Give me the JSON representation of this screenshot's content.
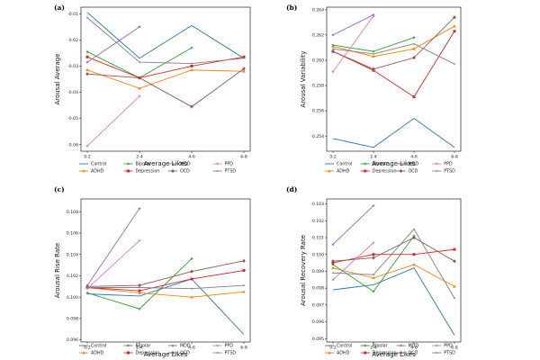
{
  "series_styles": [
    {
      "name": "Control",
      "color": "#1f77b4",
      "marker": "none"
    },
    {
      "name": "ADHD",
      "color": "#ff7f0e",
      "marker": "triangle"
    },
    {
      "name": "Bipolar",
      "color": "#2ca02c",
      "marker": "star"
    },
    {
      "name": "Depression",
      "color": "#d62728",
      "marker": "square"
    },
    {
      "name": "MDD",
      "color": "#9467bd",
      "marker": "star"
    },
    {
      "name": "OCD",
      "color": "#8c564b",
      "marker": "diamond"
    },
    {
      "name": "PPD",
      "color": "#e377c2",
      "marker": "star"
    },
    {
      "name": "PTSD",
      "color": "#7f7f7f",
      "marker": "small"
    }
  ],
  "chart_data": [
    {
      "type": "line",
      "panel_label": "(a)",
      "xlabel": "Average Likes",
      "ylabel": "Arousal Average",
      "categories": [
        "0-2",
        "2-4",
        "4-6",
        "6-8"
      ],
      "ylim": [
        -0.0625,
        -0.0075
      ],
      "yticks": [
        -0.06,
        -0.05,
        -0.04,
        -0.03,
        -0.02,
        -0.01
      ],
      "ytick_labels": [
        "-0.06",
        "-0.05",
        "-0.04",
        "-0.03",
        "-0.02",
        "-0.01"
      ],
      "series": [
        {
          "name": "Control",
          "values": [
            -0.0095,
            -0.027,
            -0.0145,
            -0.027
          ]
        },
        {
          "name": "ADHD",
          "values": [
            -0.0315,
            -0.0385,
            -0.0315,
            -0.032
          ]
        },
        {
          "name": "Bipolar",
          "values": [
            -0.0245,
            -0.0345,
            -0.023,
            null
          ]
        },
        {
          "name": "Depression",
          "values": [
            -0.0265,
            -0.0345,
            -0.03,
            -0.0265
          ]
        },
        {
          "name": "MDD",
          "values": [
            -0.0285,
            -0.015,
            null,
            null
          ]
        },
        {
          "name": "OCD",
          "values": [
            -0.033,
            -0.0345,
            -0.0455,
            -0.031
          ]
        },
        {
          "name": "PPD",
          "values": [
            -0.0605,
            -0.0415,
            null,
            null
          ]
        },
        {
          "name": "PTSD",
          "values": [
            -0.0115,
            -0.0285,
            -0.029,
            -0.027
          ]
        }
      ]
    },
    {
      "type": "line",
      "panel_label": "(b)",
      "xlabel": "Average Likes",
      "ylabel": "Arousal Variability",
      "categories": [
        "0-2",
        "2-4",
        "4-6",
        "6-8"
      ],
      "ylim": [
        0.2528,
        0.2642
      ],
      "yticks": [
        0.254,
        0.256,
        0.258,
        0.26,
        0.262,
        0.264
      ],
      "ytick_labels": [
        "0.254",
        "0.256",
        "0.258",
        "0.260",
        "0.262",
        "0.264"
      ],
      "series": [
        {
          "name": "Control",
          "values": [
            0.2538,
            0.2531,
            0.2554,
            0.2531
          ]
        },
        {
          "name": "ADHD",
          "values": [
            0.2611,
            0.2603,
            0.2609,
            0.2627
          ]
        },
        {
          "name": "Bipolar",
          "values": [
            0.2612,
            0.2607,
            0.2618,
            null
          ]
        },
        {
          "name": "Depression",
          "values": [
            0.2607,
            0.2592,
            0.2571,
            0.2623
          ]
        },
        {
          "name": "MDD",
          "values": [
            0.262,
            0.2636,
            null,
            null
          ]
        },
        {
          "name": "OCD",
          "values": [
            0.2607,
            0.2593,
            0.2602,
            0.2634
          ]
        },
        {
          "name": "PPD",
          "values": [
            0.2591,
            0.2635,
            null,
            null
          ]
        },
        {
          "name": "PTSD",
          "values": [
            0.2609,
            0.2605,
            0.2613,
            0.2597
          ]
        }
      ]
    },
    {
      "type": "line",
      "panel_label": "(c)",
      "xlabel": "Average Likes",
      "ylabel": "Arousal Rise Rate",
      "categories": [
        "0-2",
        "2-4",
        "4-6",
        "6-8"
      ],
      "ylim": [
        0.0958,
        0.1092
      ],
      "yticks": [
        0.096,
        0.098,
        0.1,
        0.102,
        0.104,
        0.106,
        0.108
      ],
      "ytick_labels": [
        "0.096",
        "0.098",
        "0.100",
        "0.102",
        "0.104",
        "0.106",
        "0.108"
      ],
      "series": [
        {
          "name": "Control",
          "values": [
            0.1003,
            0.1001,
            0.1017,
            0.0965
          ]
        },
        {
          "name": "ADHD",
          "values": [
            0.1009,
            0.1004,
            0.1,
            0.1005
          ]
        },
        {
          "name": "Bipolar",
          "values": [
            0.1004,
            0.0989,
            0.1036,
            null
          ]
        },
        {
          "name": "Depression",
          "values": [
            0.1009,
            0.1006,
            0.1017,
            0.1025
          ]
        },
        {
          "name": "MDD",
          "values": [
            0.1011,
            0.1083,
            null,
            null
          ]
        },
        {
          "name": "OCD",
          "values": [
            0.101,
            0.1011,
            0.1024,
            0.1034
          ]
        },
        {
          "name": "PPD",
          "values": [
            0.1008,
            0.1053,
            null,
            null
          ]
        },
        {
          "name": "PTSD",
          "values": [
            0.1009,
            0.1009,
            0.1008,
            0.1011
          ]
        }
      ]
    },
    {
      "type": "line",
      "panel_label": "(d)",
      "xlabel": "Average Likes",
      "ylabel": "Arousal Recovery Rate",
      "categories": [
        "0-2",
        "2-4",
        "4-6",
        "6-8"
      ],
      "ylim": [
        0.0948,
        0.1033
      ],
      "yticks": [
        0.095,
        0.096,
        0.097,
        0.098,
        0.099,
        0.1,
        0.101,
        0.102,
        0.103
      ],
      "ytick_labels": [
        "0.095",
        "0.096",
        "0.097",
        "0.098",
        "0.099",
        "0.100",
        "0.101",
        "0.102",
        "0.103"
      ],
      "series": [
        {
          "name": "Control",
          "values": [
            0.0979,
            0.0982,
            0.0992,
            0.0952
          ]
        },
        {
          "name": "ADHD",
          "values": [
            0.0992,
            0.0986,
            0.0994,
            0.0981
          ]
        },
        {
          "name": "Bipolar",
          "values": [
            0.0994,
            0.0978,
            0.1011,
            null
          ]
        },
        {
          "name": "Depression",
          "values": [
            0.0995,
            0.1,
            0.1,
            0.1003
          ]
        },
        {
          "name": "MDD",
          "values": [
            0.1006,
            0.1029,
            null,
            null
          ]
        },
        {
          "name": "OCD",
          "values": [
            0.0996,
            0.0998,
            0.101,
            0.0996
          ]
        },
        {
          "name": "PPD",
          "values": [
            0.0985,
            0.1007,
            null,
            null
          ]
        },
        {
          "name": "PTSD",
          "values": [
            0.0989,
            0.0988,
            0.1015,
            0.0974
          ]
        }
      ]
    }
  ]
}
